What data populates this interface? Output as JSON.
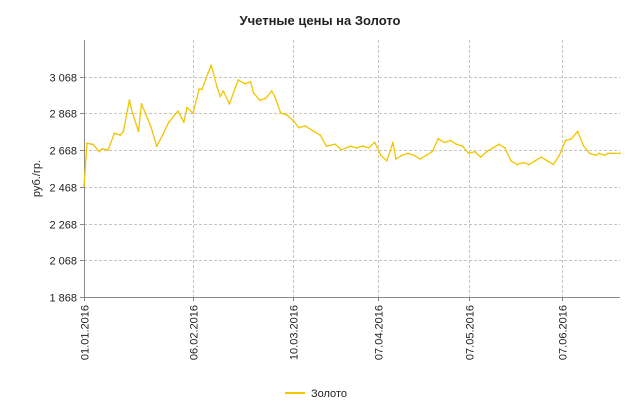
{
  "chart_data": {
    "type": "line",
    "title": "Учетные цены на Золото",
    "ylabel": "руб./гр.",
    "xlabel": "",
    "ylim": [
      1868,
      3268
    ],
    "yticks": [
      1868,
      2068,
      2268,
      2468,
      2668,
      2868,
      3068
    ],
    "ytick_labels": [
      "1 868",
      "2 068",
      "2 268",
      "2 468",
      "2 668",
      "2 868",
      "3 068"
    ],
    "x_range": [
      "2016-01-01",
      "2016-06-26"
    ],
    "xticks": [
      "2016-01-01",
      "2016-02-06",
      "2016-03-10",
      "2016-04-07",
      "2016-05-07",
      "2016-06-07"
    ],
    "xtick_labels": [
      "01.01.2016",
      "06.02.2016",
      "10.03.2016",
      "07.04.2016",
      "07.05.2016",
      "07.06.2016"
    ],
    "grid": true,
    "legend_position": "bottom-center",
    "series": [
      {
        "name": "Золото",
        "color": "#f2c500",
        "x": [
          "2016-01-01",
          "2016-01-02",
          "2016-01-04",
          "2016-01-06",
          "2016-01-07",
          "2016-01-09",
          "2016-01-11",
          "2016-01-13",
          "2016-01-14",
          "2016-01-16",
          "2016-01-17",
          "2016-01-19",
          "2016-01-20",
          "2016-01-22",
          "2016-01-23",
          "2016-01-25",
          "2016-01-27",
          "2016-01-29",
          "2016-02-01",
          "2016-02-03",
          "2016-02-04",
          "2016-02-06",
          "2016-02-08",
          "2016-02-09",
          "2016-02-11",
          "2016-02-12",
          "2016-02-14",
          "2016-02-15",
          "2016-02-16",
          "2016-02-18",
          "2016-02-20",
          "2016-02-21",
          "2016-02-23",
          "2016-02-25",
          "2016-02-26",
          "2016-02-28",
          "2016-03-01",
          "2016-03-03",
          "2016-03-04",
          "2016-03-06",
          "2016-03-08",
          "2016-03-10",
          "2016-03-12",
          "2016-03-14",
          "2016-03-17",
          "2016-03-19",
          "2016-03-21",
          "2016-03-24",
          "2016-03-26",
          "2016-03-29",
          "2016-03-31",
          "2016-04-02",
          "2016-04-04",
          "2016-04-06",
          "2016-04-08",
          "2016-04-10",
          "2016-04-12",
          "2016-04-13",
          "2016-04-15",
          "2016-04-17",
          "2016-04-19",
          "2016-04-21",
          "2016-04-23",
          "2016-04-25",
          "2016-04-27",
          "2016-04-29",
          "2016-05-01",
          "2016-05-03",
          "2016-05-05",
          "2016-05-07",
          "2016-05-09",
          "2016-05-11",
          "2016-05-13",
          "2016-05-15",
          "2016-05-17",
          "2016-05-19",
          "2016-05-21",
          "2016-05-23",
          "2016-05-25",
          "2016-05-27",
          "2016-05-29",
          "2016-05-31",
          "2016-06-02",
          "2016-06-04",
          "2016-06-06",
          "2016-06-08",
          "2016-06-10",
          "2016-06-12",
          "2016-06-14",
          "2016-06-16",
          "2016-06-18",
          "2016-06-19",
          "2016-06-21",
          "2016-06-22",
          "2016-06-24",
          "2016-06-26"
        ],
        "values": [
          2470,
          2705,
          2700,
          2660,
          2675,
          2670,
          2760,
          2750,
          2770,
          2940,
          2870,
          2770,
          2920,
          2840,
          2800,
          2690,
          2750,
          2820,
          2880,
          2820,
          2900,
          2870,
          3000,
          3000,
          3090,
          3130,
          3010,
          2960,
          2990,
          2920,
          3010,
          3050,
          3030,
          3040,
          2980,
          2940,
          2950,
          2990,
          2960,
          2870,
          2860,
          2830,
          2790,
          2800,
          2770,
          2750,
          2690,
          2700,
          2670,
          2690,
          2680,
          2690,
          2680,
          2710,
          2640,
          2610,
          2710,
          2620,
          2640,
          2650,
          2640,
          2620,
          2640,
          2660,
          2730,
          2710,
          2720,
          2700,
          2690,
          2650,
          2660,
          2630,
          2660,
          2680,
          2700,
          2680,
          2610,
          2590,
          2600,
          2590,
          2610,
          2630,
          2610,
          2590,
          2640,
          2720,
          2730,
          2770,
          2690,
          2650,
          2640,
          2650,
          2640,
          2650,
          2650,
          2650
        ]
      }
    ]
  }
}
